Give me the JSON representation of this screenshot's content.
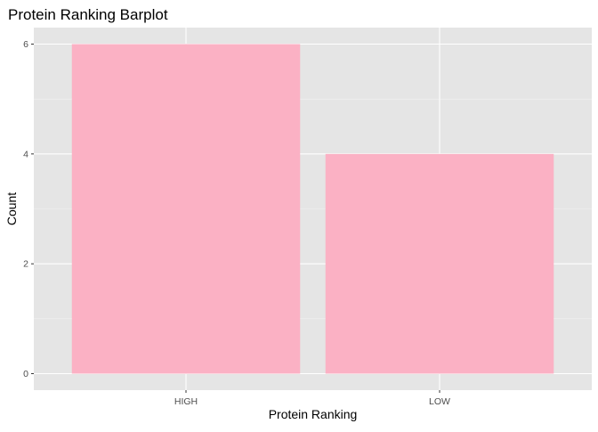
{
  "chart_data": {
    "type": "bar",
    "title": "Protein Ranking Barplot",
    "xlabel": "Protein Ranking",
    "ylabel": "Count",
    "categories": [
      "HIGH",
      "LOW"
    ],
    "values": [
      6,
      4
    ],
    "ylim": [
      -0.3,
      6.3
    ],
    "yticks": [
      0,
      2,
      4,
      6
    ],
    "grid": true,
    "legend": "none",
    "colors": {
      "panel_background": "#E5E5E5",
      "grid_major": "#FFFFFF",
      "grid_minor": "#F2F2F2",
      "bar_fill": "#FBB1C4",
      "text": "#000000",
      "tick_text": "#4D4D4D",
      "tick_mark": "#333333"
    }
  }
}
